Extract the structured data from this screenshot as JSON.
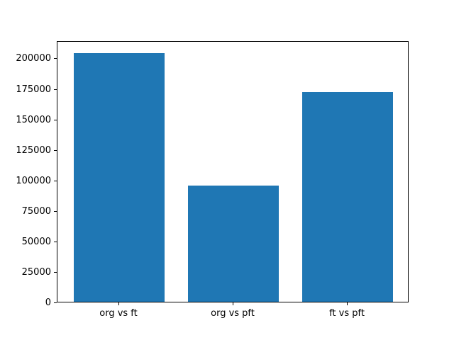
{
  "chart_data": {
    "type": "bar",
    "categories": [
      "org vs ft",
      "org vs pft",
      "ft vs pft"
    ],
    "values": [
      204000,
      95000,
      172000
    ],
    "title": "",
    "xlabel": "",
    "ylabel": "",
    "ylim": [
      0,
      214200
    ],
    "xlim": [
      -0.54,
      2.54
    ],
    "yticks": [
      0,
      25000,
      50000,
      75000,
      100000,
      125000,
      150000,
      175000,
      200000
    ],
    "bar_color": "#1f77b4",
    "bar_width_units": 0.8,
    "grid": false,
    "legend": null
  },
  "figure": {
    "background": "#ffffff",
    "axes_border_color": "#000000",
    "tick_color": "#000000",
    "text_color": "#000000"
  }
}
